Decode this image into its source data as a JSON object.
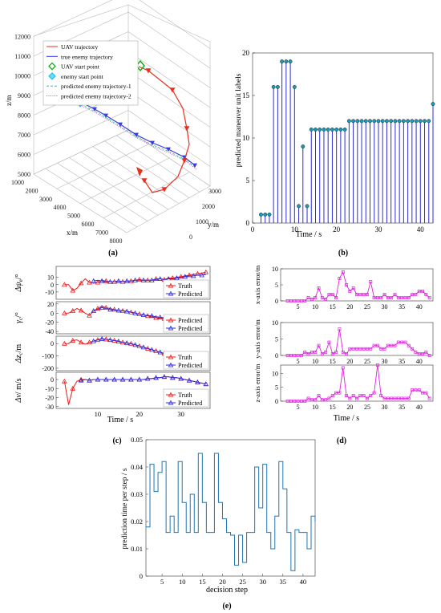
{
  "panel_labels": {
    "a": "(a)",
    "b": "(b)",
    "c": "(c)",
    "d": "(d)",
    "e": "(e)"
  },
  "colors": {
    "uav": "#e8301e",
    "enemy": "#3a3adf",
    "pred1": "#20c9a0",
    "pred2": "#c040d0",
    "stem": "#2c2cd8",
    "stem_marker": "#1c9ab4",
    "truth": "#f01818",
    "predicted": "#2a2ae0",
    "error": "#e020e0",
    "timing": "#1f77b4"
  },
  "chart_data": [
    {
      "id": "a",
      "type": "scatter",
      "title": "",
      "xlabel": "x/m",
      "ylabel": "y/m",
      "zlabel": "z/m",
      "x_ticks": [
        "1000",
        "2000",
        "3000",
        "4000",
        "5000",
        "6000",
        "7000",
        "8000"
      ],
      "y_ticks": [
        "0",
        "1000",
        "2000",
        "3000"
      ],
      "z_ticks": [
        "5000",
        "6000",
        "7000",
        "8000",
        "9000",
        "10000",
        "11000",
        "12000"
      ],
      "legend": [
        "UAV trajectory",
        "true enemy trajectory",
        "UAV start point",
        "enemy start point",
        "predicted enemy trajectory-1",
        "predicted enemy trajectory-2"
      ],
      "legend_position": "top-left",
      "uav_start": [
        6400,
        2700,
        10500
      ],
      "enemy_start": [
        1800,
        1500,
        8700
      ]
    },
    {
      "id": "b",
      "type": "bar",
      "xlabel": "Time / s",
      "ylabel": "predicted maneuver unit labels",
      "xlim": [
        0,
        43
      ],
      "ylim": [
        0,
        20
      ],
      "x_ticks": [
        "0",
        "10",
        "20",
        "30",
        "40"
      ],
      "y_ticks": [
        "0",
        "5",
        "10",
        "15",
        "20"
      ],
      "x": [
        2,
        3,
        4,
        5,
        6,
        7,
        8,
        9,
        10,
        11,
        12,
        13,
        14,
        15,
        16,
        17,
        18,
        19,
        20,
        21,
        22,
        23,
        24,
        25,
        26,
        27,
        28,
        29,
        30,
        31,
        32,
        33,
        34,
        35,
        36,
        37,
        38,
        39,
        40,
        41,
        42,
        43
      ],
      "values": [
        1,
        1,
        1,
        16,
        16,
        19,
        19,
        19,
        16,
        2,
        9,
        2,
        11,
        11,
        11,
        11,
        11,
        11,
        11,
        11,
        11,
        12,
        12,
        12,
        12,
        12,
        12,
        12,
        12,
        12,
        12,
        12,
        12,
        12,
        12,
        12,
        12,
        12,
        12,
        12,
        12,
        14
      ]
    },
    {
      "id": "c",
      "type": "line",
      "xlabel": "Time / s",
      "xlim": [
        0,
        37
      ],
      "x_ticks": [
        "10",
        "20",
        "30"
      ],
      "time": [
        2,
        3,
        4,
        5,
        6,
        7,
        8,
        9,
        10,
        11,
        12,
        13,
        14,
        15,
        16,
        17,
        18,
        19,
        20,
        21,
        22,
        23,
        24,
        25,
        26,
        27,
        28,
        29,
        30,
        31,
        32,
        33,
        34,
        35,
        36
      ],
      "subplots": [
        {
          "ylabel_main": "Δψ",
          "ylabel_sub": "e",
          "ylabel_unit": "/°",
          "ylim": [
            -20,
            25
          ],
          "y_ticks": [
            "10",
            "0",
            "-10"
          ],
          "series": [
            {
              "name": "Truth",
              "values": [
                0,
                0,
                -8,
                -5,
                2,
                8,
                3,
                2,
                3,
                6,
                5,
                4,
                4,
                5,
                4,
                5,
                5,
                6,
                7,
                6,
                6,
                6,
                8,
                8,
                7,
                9,
                9,
                10,
                11,
                12,
                13,
                14,
                15,
                16,
                17
              ]
            },
            {
              "name": "Predicted",
              "values": [
                null,
                null,
                null,
                null,
                null,
                null,
                null,
                5,
                6,
                5,
                4,
                4,
                4,
                5,
                4,
                5,
                5,
                6,
                6,
                6,
                6,
                6,
                7,
                8,
                7,
                8,
                8,
                9,
                10,
                11,
                12,
                12,
                13,
                13,
                14
              ]
            }
          ],
          "legend": [
            "Truth",
            "Predicted"
          ]
        },
        {
          "ylabel_main": "γ",
          "ylabel_sub": "c",
          "ylabel_unit": "/°",
          "ylim": [
            -45,
            25
          ],
          "y_ticks": [
            "20",
            "0",
            "-20",
            "-40"
          ],
          "series": [
            {
              "name": "Predicted",
              "values": [
                0,
                0,
                5,
                10,
                6,
                0,
                -5,
                5,
                10,
                15,
                12,
                10,
                8,
                6,
                5,
                4,
                2,
                0,
                -2,
                -4,
                -6,
                -8,
                -10,
                -11,
                -12,
                -14,
                -16,
                -18,
                -20,
                -22,
                -24,
                -26,
                -28,
                -29,
                -30
              ]
            },
            {
              "name": "Predicted",
              "values": [
                null,
                null,
                null,
                null,
                null,
                null,
                null,
                5,
                8,
                12,
                10,
                8,
                7,
                6,
                5,
                4,
                2,
                0,
                -2,
                -4,
                -5,
                -6,
                -8,
                -9,
                -10,
                -12,
                -13,
                -14,
                -16,
                -17,
                -18,
                -19,
                -20,
                -21,
                -22
              ]
            }
          ],
          "legend": [
            "Predicted",
            "Predicted"
          ]
        },
        {
          "ylabel_main": "Δz",
          "ylabel_sub": "c",
          "ylabel_unit": "/m",
          "ylim": [
            -220,
            60
          ],
          "y_ticks": [
            "0",
            "-100",
            "-200"
          ],
          "series": [
            {
              "name": "Truth",
              "values": [
                0,
                0,
                25,
                30,
                10,
                -5,
                10,
                20,
                30,
                40,
                35,
                30,
                25,
                20,
                10,
                5,
                0,
                -10,
                -20,
                -30,
                -40,
                -50,
                -60,
                -70,
                -80,
                -90,
                -100,
                -110,
                -120,
                -125,
                -130,
                -135,
                -140,
                -140,
                -140
              ]
            },
            {
              "name": "Predicted",
              "values": [
                null,
                null,
                null,
                null,
                null,
                null,
                null,
                20,
                30,
                38,
                34,
                30,
                24,
                18,
                10,
                4,
                -2,
                -10,
                -20,
                -30,
                -40,
                -50,
                -60,
                -70,
                -80,
                -90,
                -100,
                -110,
                -118,
                -124,
                -130,
                -134,
                -138,
                -140,
                -140
              ]
            }
          ],
          "legend": [
            "Truth",
            "Predicted"
          ]
        },
        {
          "ylabel_main": "Δv",
          "ylabel_sub": "",
          "ylabel_unit": "/ m/s",
          "ylim": [
            -32,
            8
          ],
          "y_ticks": [
            "0",
            "-10",
            "-20",
            "-30"
          ],
          "series": [
            {
              "name": "Truth",
              "values": [
                -2,
                -28,
                -10,
                -2,
                0,
                0,
                -1,
                0,
                0,
                0,
                0,
                0,
                0,
                0,
                0,
                0,
                0,
                0,
                0,
                0,
                1,
                1,
                2,
                2,
                3,
                3,
                2,
                2,
                1,
                0,
                -1,
                -2,
                -3,
                -4,
                -5
              ]
            },
            {
              "name": "Predicted",
              "values": [
                null,
                null,
                null,
                null,
                -1,
                0,
                -1,
                0,
                0,
                0,
                0,
                0,
                0,
                0,
                0,
                0,
                0,
                0,
                0,
                0,
                1,
                1,
                2,
                2,
                3,
                3,
                2,
                2,
                1,
                0,
                -1,
                -2,
                -3,
                -4,
                -5
              ]
            }
          ],
          "legend": [
            "Truth",
            "Predicted"
          ]
        }
      ]
    },
    {
      "id": "d",
      "type": "line",
      "xlabel": "Time / s",
      "xlim": [
        0,
        44
      ],
      "x_ticks": [
        "5",
        "10",
        "15",
        "20",
        "25",
        "30",
        "35",
        "40"
      ],
      "time": [
        2,
        3,
        4,
        5,
        6,
        7,
        8,
        9,
        10,
        11,
        12,
        13,
        14,
        15,
        16,
        17,
        18,
        19,
        20,
        21,
        22,
        23,
        24,
        25,
        26,
        27,
        28,
        29,
        30,
        31,
        32,
        33,
        34,
        35,
        36,
        37,
        38,
        39,
        40,
        41,
        42,
        43
      ],
      "subplots": [
        {
          "ylabel": "x-axis error/m",
          "ylim": [
            0,
            10
          ],
          "y_ticks": [
            "0",
            "5",
            "10"
          ],
          "values": [
            0,
            0,
            0,
            0,
            0,
            0,
            1,
            0.5,
            1,
            4,
            1,
            0.5,
            2,
            2,
            1,
            7,
            9,
            5,
            3,
            4,
            2,
            2,
            2,
            2,
            6,
            1,
            1,
            1,
            2,
            1,
            1,
            2,
            1,
            1,
            1,
            1,
            2,
            2,
            3,
            3,
            2,
            1
          ]
        },
        {
          "ylabel": "y-axis error/m",
          "ylim": [
            0,
            10
          ],
          "y_ticks": [
            "0",
            "5",
            "10"
          ],
          "values": [
            0,
            0,
            0,
            0,
            0,
            1,
            0.5,
            1,
            1,
            3,
            0.5,
            1,
            4,
            0.5,
            1,
            8,
            1,
            0.5,
            2,
            2,
            2,
            2,
            2,
            2,
            2,
            3,
            3,
            2,
            2,
            3,
            3,
            3,
            4,
            4,
            4,
            3,
            2,
            1,
            0.5,
            0.5,
            1,
            0
          ]
        },
        {
          "ylabel": "z-axis error/m",
          "ylim": [
            0,
            13
          ],
          "y_ticks": [
            "0",
            "5",
            "10"
          ],
          "values": [
            0,
            0,
            0,
            0,
            0,
            0,
            1,
            0.5,
            0.5,
            2,
            0.5,
            0.5,
            1,
            2,
            3,
            3,
            12,
            2,
            1,
            2,
            1,
            2,
            2,
            1,
            2,
            3,
            13,
            2,
            1,
            1,
            1,
            1,
            1,
            1,
            1,
            1,
            4,
            4,
            4,
            3,
            3,
            1
          ]
        }
      ]
    },
    {
      "id": "e",
      "type": "line",
      "xlabel": "decision step",
      "ylabel": "prediction time per step / s",
      "xlim": [
        1,
        43
      ],
      "ylim": [
        0,
        0.05
      ],
      "x_ticks": [
        "5",
        "10",
        "15",
        "20",
        "25",
        "30",
        "35",
        "40"
      ],
      "y_ticks": [
        "0",
        "0.01",
        "0.02",
        "0.03",
        "0.04",
        "0.05"
      ],
      "x": [
        1,
        2,
        3,
        4,
        5,
        6,
        7,
        8,
        9,
        10,
        11,
        12,
        13,
        14,
        15,
        16,
        17,
        18,
        19,
        20,
        21,
        22,
        23,
        24,
        25,
        26,
        27,
        28,
        29,
        30,
        31,
        32,
        33,
        34,
        35,
        36,
        37,
        38,
        39,
        40,
        41,
        42,
        43
      ],
      "values": [
        0.018,
        0.041,
        0.031,
        0.038,
        0.042,
        0.016,
        0.022,
        0.016,
        0.042,
        0.027,
        0.016,
        0.03,
        0.016,
        0.045,
        0.027,
        0.016,
        0.016,
        0.045,
        0.027,
        0.021,
        0.016,
        0.015,
        0.004,
        0.015,
        0.005,
        0.016,
        0.016,
        0.04,
        0.025,
        0.041,
        0.016,
        0.01,
        0.022,
        0.042,
        0.032,
        0.016,
        0.002,
        0.017,
        0.016,
        0.016,
        0.01,
        0.022,
        0.02
      ]
    }
  ]
}
